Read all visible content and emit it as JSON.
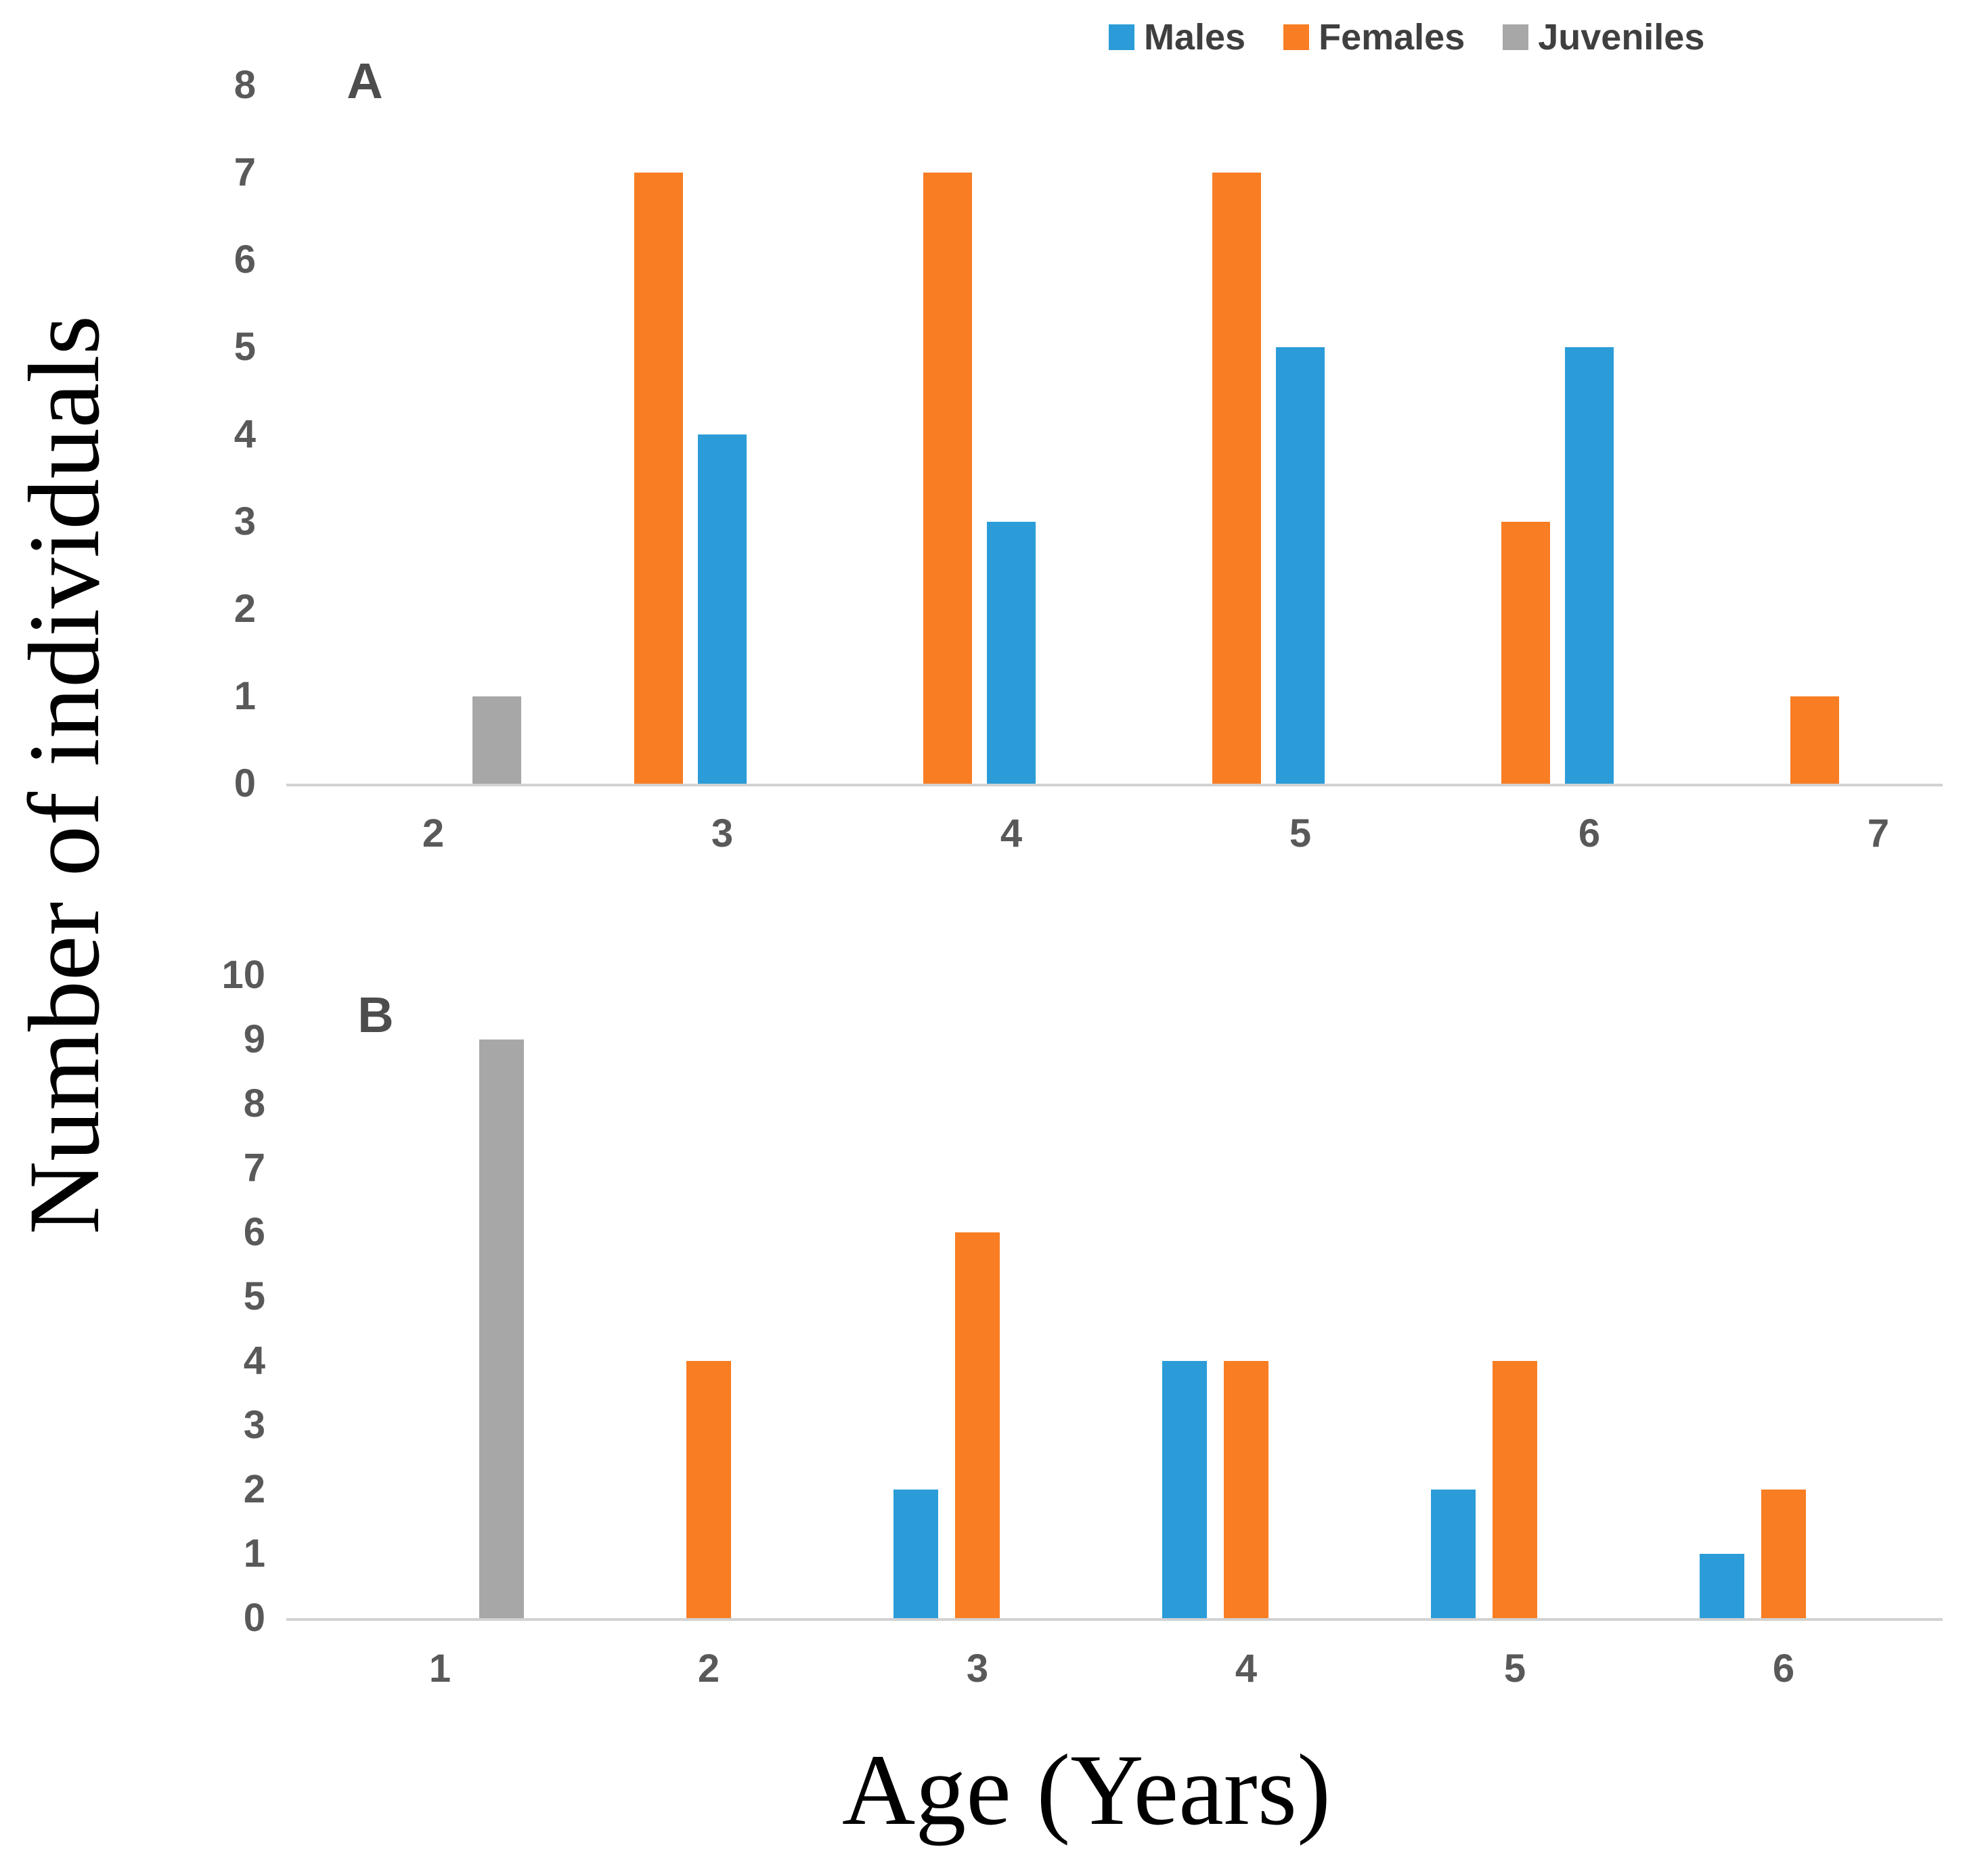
{
  "figure": {
    "y_axis_title": "Number of individuals",
    "x_axis_title": "Age (Years)"
  },
  "legend": {
    "position": "top-center-right",
    "items": [
      {
        "label": "Males",
        "color_key": "males"
      },
      {
        "label": "Females",
        "color_key": "females"
      },
      {
        "label": "Juveniles",
        "color_key": "juveniles"
      }
    ]
  },
  "colors": {
    "males": "#2B9CD8",
    "females": "#F87D23",
    "juveniles": "#A7A7A7",
    "axis_line": "#D2D2D2",
    "tick_text": "#595959",
    "legend_text": "#3F3F3F"
  },
  "chart_data": [
    {
      "type": "bar",
      "panel_label": "A",
      "title": "",
      "xlabel": "Age (Years)",
      "ylabel": "Number of individuals",
      "categories": [
        2,
        3,
        4,
        5,
        6,
        7
      ],
      "series": [
        {
          "name": "Females",
          "color_key": "females",
          "values": [
            0,
            7,
            7,
            7,
            3,
            1
          ]
        },
        {
          "name": "Males",
          "color_key": "males",
          "values": [
            0,
            4,
            3,
            5,
            5,
            0
          ]
        },
        {
          "name": "Juveniles",
          "color_key": "juveniles",
          "values": [
            1,
            0,
            0,
            0,
            0,
            0
          ]
        }
      ],
      "series_note": "series listed left-to-right within each category group",
      "ylim": [
        0,
        8
      ],
      "yticks": [
        0,
        1,
        2,
        3,
        4,
        5,
        6,
        7,
        8
      ],
      "grid": false
    },
    {
      "type": "bar",
      "panel_label": "B",
      "title": "",
      "xlabel": "Age (Years)",
      "ylabel": "Number of individuals",
      "categories": [
        1,
        2,
        3,
        4,
        5,
        6
      ],
      "series": [
        {
          "name": "Males",
          "color_key": "males",
          "values": [
            0,
            0,
            2,
            4,
            2,
            1
          ]
        },
        {
          "name": "Females",
          "color_key": "females",
          "values": [
            0,
            4,
            6,
            4,
            4,
            2
          ]
        },
        {
          "name": "Juveniles",
          "color_key": "juveniles",
          "values": [
            9,
            0,
            0,
            0,
            0,
            0
          ]
        }
      ],
      "series_note": "series listed left-to-right within each category group",
      "ylim": [
        0,
        10
      ],
      "yticks": [
        0,
        1,
        2,
        3,
        4,
        5,
        6,
        7,
        8,
        9,
        10
      ],
      "grid": false
    }
  ]
}
